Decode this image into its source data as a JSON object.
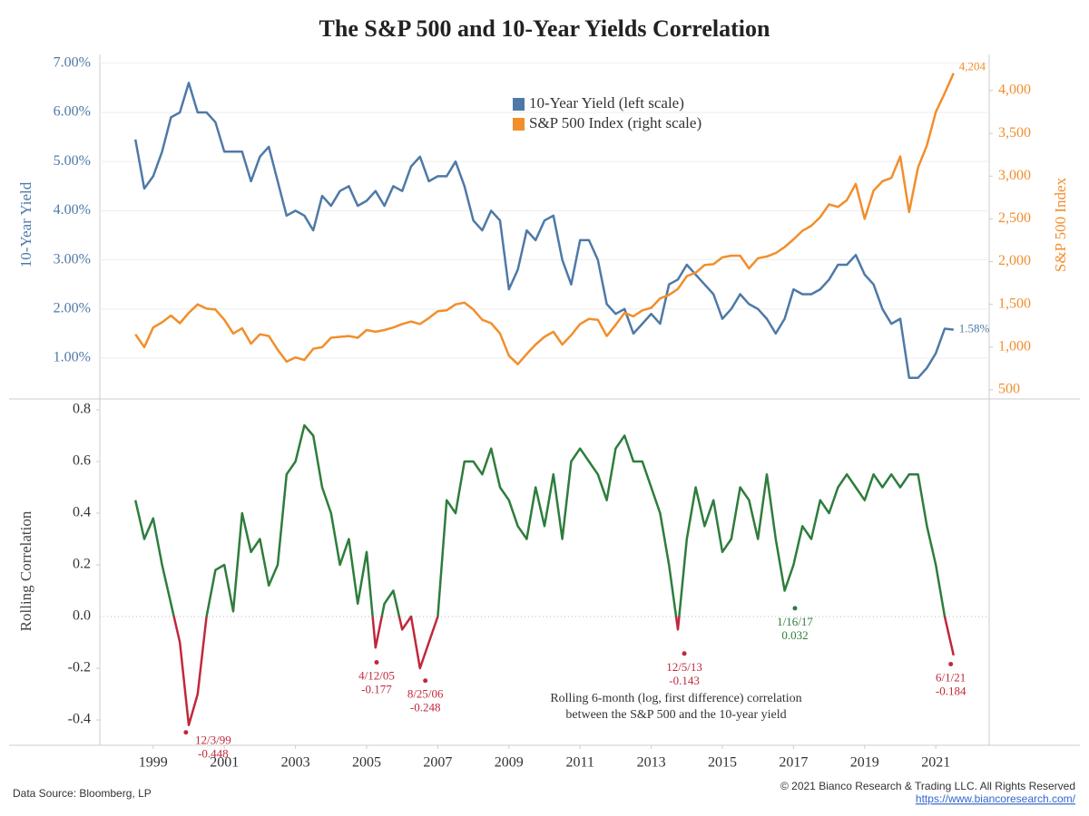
{
  "chart_data": [
    {
      "type": "dual_line",
      "title": "The S&P 500 and 10-Year Yields Correlation",
      "ylabel": "10-Year Yield",
      "y2label": "S&P 500 Index",
      "x": [
        1998.5,
        1998.75,
        1999,
        1999.25,
        1999.5,
        1999.75,
        2000,
        2000.25,
        2000.5,
        2000.75,
        2001,
        2001.25,
        2001.5,
        2001.75,
        2002,
        2002.25,
        2002.5,
        2002.75,
        2003,
        2003.25,
        2003.5,
        2003.75,
        2004,
        2004.25,
        2004.5,
        2004.75,
        2005,
        2005.25,
        2005.5,
        2005.75,
        2006,
        2006.25,
        2006.5,
        2006.75,
        2007,
        2007.25,
        2007.5,
        2007.75,
        2008,
        2008.25,
        2008.5,
        2008.75,
        2009,
        2009.25,
        2009.5,
        2009.75,
        2010,
        2010.25,
        2010.5,
        2010.75,
        2011,
        2011.25,
        2011.5,
        2011.75,
        2012,
        2012.25,
        2012.5,
        2012.75,
        2013,
        2013.25,
        2013.5,
        2013.75,
        2014,
        2014.25,
        2014.5,
        2014.75,
        2015,
        2015.25,
        2015.5,
        2015.75,
        2016,
        2016.25,
        2016.5,
        2016.75,
        2017,
        2017.25,
        2017.5,
        2017.75,
        2018,
        2018.25,
        2018.5,
        2018.75,
        2019,
        2019.25,
        2019.5,
        2019.75,
        2020,
        2020.25,
        2020.5,
        2020.75,
        2021,
        2021.25,
        2021.5
      ],
      "series": [
        {
          "name": "10-Year Yield (left scale)",
          "color": "#4e79a7",
          "end_label": "1.58%",
          "values": [
            5.45,
            4.45,
            4.7,
            5.2,
            5.9,
            6.0,
            6.6,
            6.0,
            6.0,
            5.8,
            5.2,
            5.2,
            5.2,
            4.6,
            5.1,
            5.3,
            4.6,
            3.9,
            4.0,
            3.9,
            3.6,
            4.3,
            4.1,
            4.4,
            4.5,
            4.1,
            4.2,
            4.4,
            4.1,
            4.5,
            4.4,
            4.9,
            5.1,
            4.6,
            4.7,
            4.7,
            5.0,
            4.5,
            3.8,
            3.6,
            4.0,
            3.8,
            2.4,
            2.8,
            3.6,
            3.4,
            3.8,
            3.9,
            3.0,
            2.5,
            3.4,
            3.4,
            3.0,
            2.1,
            1.9,
            2.0,
            1.5,
            1.7,
            1.9,
            1.7,
            2.5,
            2.6,
            2.9,
            2.7,
            2.5,
            2.3,
            1.8,
            2.0,
            2.3,
            2.1,
            2.0,
            1.8,
            1.5,
            1.8,
            2.4,
            2.3,
            2.3,
            2.4,
            2.6,
            2.9,
            2.9,
            3.1,
            2.7,
            2.5,
            2.0,
            1.7,
            1.8,
            0.6,
            0.6,
            0.8,
            1.1,
            1.6,
            1.58
          ]
        },
        {
          "name": "S&P 500 Index (right scale)",
          "color": "#f28e2b",
          "axis": "y2",
          "end_label": "4,204",
          "values": [
            1150,
            1000,
            1230,
            1290,
            1370,
            1280,
            1400,
            1500,
            1450,
            1440,
            1320,
            1160,
            1220,
            1040,
            1150,
            1130,
            970,
            830,
            880,
            850,
            980,
            1000,
            1110,
            1120,
            1130,
            1110,
            1200,
            1180,
            1200,
            1230,
            1270,
            1300,
            1270,
            1340,
            1420,
            1430,
            1500,
            1520,
            1440,
            1320,
            1280,
            1160,
            900,
            800,
            920,
            1030,
            1120,
            1180,
            1030,
            1140,
            1270,
            1330,
            1320,
            1130,
            1260,
            1400,
            1360,
            1430,
            1460,
            1570,
            1610,
            1680,
            1830,
            1870,
            1960,
            1970,
            2050,
            2070,
            2070,
            1920,
            2040,
            2060,
            2100,
            2170,
            2260,
            2360,
            2420,
            2520,
            2670,
            2640,
            2720,
            2910,
            2500,
            2830,
            2940,
            2980,
            3230,
            2580,
            3100,
            3360,
            3750,
            3970,
            4204
          ]
        }
      ],
      "xlim": [
        1997.5,
        2022.5
      ],
      "ylim": [
        0.17,
        7.18
      ],
      "yticks": [
        {
          "value": 1,
          "label": "1.00%"
        },
        {
          "value": 2,
          "label": "2.00%"
        },
        {
          "value": 3,
          "label": "3.00%"
        },
        {
          "value": 4,
          "label": "4.00%"
        },
        {
          "value": 5,
          "label": "5.00%"
        },
        {
          "value": 6,
          "label": "6.00%"
        },
        {
          "value": 7,
          "label": "7.00%"
        }
      ],
      "y2lim": [
        394,
        4424
      ],
      "y2ticks": [
        500,
        {
          "value": 1000,
          "label": "1,000"
        },
        {
          "value": 1500,
          "label": "1,500"
        },
        {
          "value": 2000,
          "label": "2,000"
        },
        {
          "value": 2500,
          "label": "2,500"
        },
        {
          "value": 3000,
          "label": "3,000"
        },
        {
          "value": 3500,
          "label": "3,500"
        },
        {
          "value": 4000,
          "label": "4,000"
        }
      ],
      "grid": true
    },
    {
      "type": "line",
      "ylabel": "Rolling Correlation",
      "x": [
        1998.5,
        1998.75,
        1999,
        1999.25,
        1999.5,
        1999.75,
        2000,
        2000.25,
        2000.5,
        2000.75,
        2001,
        2001.25,
        2001.5,
        2001.75,
        2002,
        2002.25,
        2002.5,
        2002.75,
        2003,
        2003.25,
        2003.5,
        2003.75,
        2004,
        2004.25,
        2004.5,
        2004.75,
        2005,
        2005.25,
        2005.5,
        2005.75,
        2006,
        2006.25,
        2006.5,
        2006.75,
        2007,
        2007.25,
        2007.5,
        2007.75,
        2008,
        2008.25,
        2008.5,
        2008.75,
        2009,
        2009.25,
        2009.5,
        2009.75,
        2010,
        2010.25,
        2010.5,
        2010.75,
        2011,
        2011.25,
        2011.5,
        2011.75,
        2012,
        2012.25,
        2012.5,
        2012.75,
        2013,
        2013.25,
        2013.5,
        2013.75,
        2014,
        2014.25,
        2014.5,
        2014.75,
        2015,
        2015.25,
        2015.5,
        2015.75,
        2016,
        2016.25,
        2016.5,
        2016.75,
        2017,
        2017.25,
        2017.5,
        2017.75,
        2018,
        2018.25,
        2018.5,
        2018.75,
        2019,
        2019.25,
        2019.5,
        2019.75,
        2020,
        2020.25,
        2020.5,
        2020.75,
        2021,
        2021.25,
        2021.5
      ],
      "color": "#2e7d3c",
      "negative_color": "#c0283c",
      "values": [
        0.45,
        0.3,
        0.38,
        0.2,
        0.05,
        -0.1,
        -0.42,
        -0.3,
        0.0,
        0.18,
        0.2,
        0.02,
        0.4,
        0.25,
        0.3,
        0.12,
        0.2,
        0.55,
        0.6,
        0.74,
        0.7,
        0.5,
        0.4,
        0.2,
        0.3,
        0.05,
        0.25,
        -0.12,
        0.05,
        0.1,
        -0.05,
        0.0,
        -0.2,
        -0.1,
        0.0,
        0.45,
        0.4,
        0.6,
        0.6,
        0.55,
        0.65,
        0.5,
        0.45,
        0.35,
        0.3,
        0.5,
        0.35,
        0.55,
        0.3,
        0.6,
        0.65,
        0.6,
        0.55,
        0.45,
        0.65,
        0.7,
        0.6,
        0.6,
        0.5,
        0.4,
        0.2,
        -0.05,
        0.3,
        0.5,
        0.35,
        0.45,
        0.25,
        0.3,
        0.5,
        0.45,
        0.3,
        0.55,
        0.3,
        0.1,
        0.2,
        0.35,
        0.3,
        0.45,
        0.4,
        0.5,
        0.55,
        0.5,
        0.45,
        0.55,
        0.5,
        0.55,
        0.5,
        0.55,
        0.55,
        0.35,
        0.2,
        0.0,
        -0.15
      ],
      "xlim": [
        1997.5,
        2022.5
      ],
      "xticks": [
        1999,
        2001,
        2003,
        2005,
        2007,
        2009,
        2011,
        2013,
        2015,
        2017,
        2019,
        2021
      ],
      "ylim": [
        -0.498,
        0.842
      ],
      "yticks": [
        -0.4,
        -0.2,
        {
          "value": 0,
          "label": "0.0"
        },
        0.2,
        0.4,
        0.6,
        0.8
      ],
      "annotations": [
        {
          "label": "12/3/99",
          "x": 1999.92,
          "value": -0.448
        },
        {
          "label": "4/12/05",
          "x": 2005.28,
          "value": -0.177
        },
        {
          "label": "8/25/06",
          "x": 2006.65,
          "value": -0.248
        },
        {
          "label": "12/5/13",
          "x": 2013.93,
          "value": -0.143
        },
        {
          "label": "1/16/17",
          "x": 2017.04,
          "value": 0.032
        },
        {
          "label": "6/1/21",
          "x": 2021.42,
          "value": -0.184
        }
      ],
      "caption": [
        "Rolling 6-month (log, first difference) correlation",
        "between the S&P 500 and the 10-year yield"
      ]
    }
  ],
  "footer": {
    "source": "Data Source: Bloomberg, LP",
    "copyright": "© 2021 Bianco Research & Trading LLC. All Rights Reserved",
    "url": "https://www.biancoresearch.com/"
  }
}
